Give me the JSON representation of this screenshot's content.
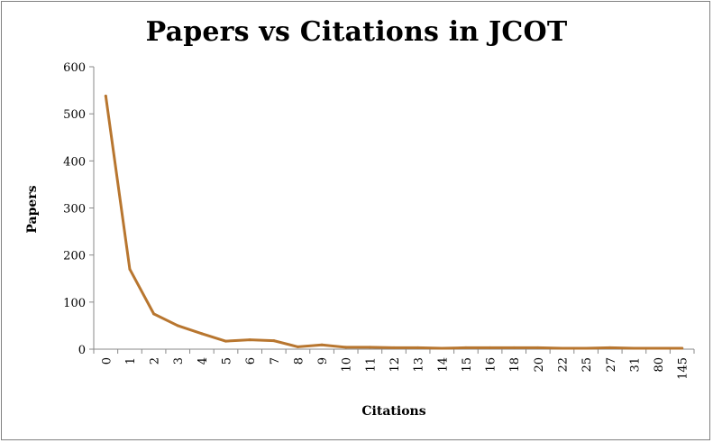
{
  "chart_data": {
    "type": "line",
    "title": "Papers vs Citations in JCOT",
    "xlabel": "Citations",
    "ylabel": "Papers",
    "categories": [
      "0",
      "1",
      "2",
      "3",
      "4",
      "5",
      "6",
      "7",
      "8",
      "9",
      "10",
      "11",
      "12",
      "13",
      "14",
      "15",
      "16",
      "18",
      "20",
      "22",
      "25",
      "27",
      "31",
      "80",
      "145"
    ],
    "series": [
      {
        "values": [
          538,
          170,
          75,
          50,
          33,
          17,
          20,
          18,
          5,
          9,
          4,
          4,
          3,
          3,
          2,
          3,
          3,
          3,
          3,
          2,
          2,
          3,
          2,
          2,
          2
        ]
      }
    ],
    "ylim": [
      0,
      600
    ],
    "yticks": [
      0,
      100,
      200,
      300,
      400,
      500,
      600
    ],
    "grid": false,
    "legend": "none",
    "line_color": "#B8762F"
  }
}
